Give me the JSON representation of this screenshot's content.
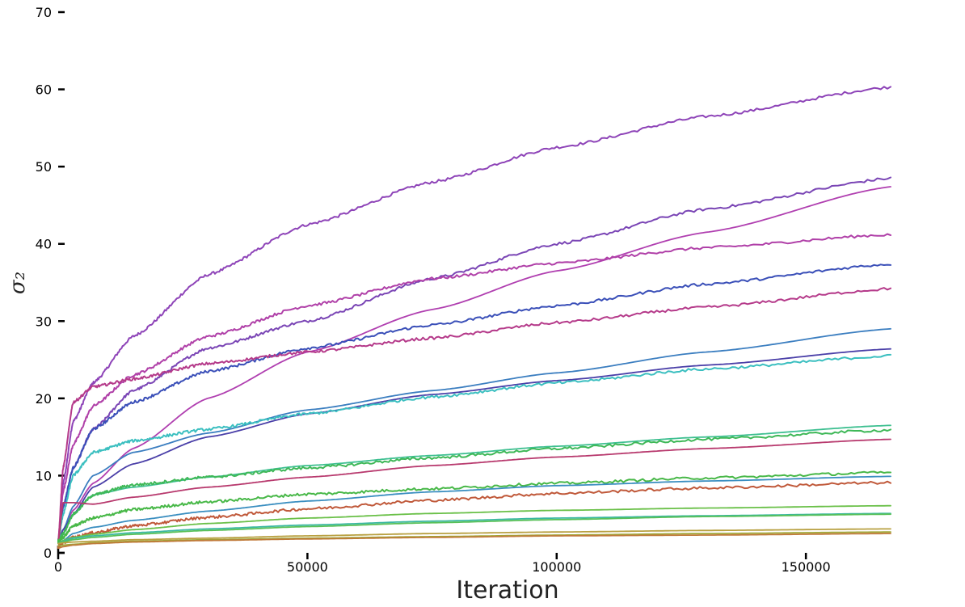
{
  "chart_data": {
    "type": "line",
    "xlabel": "Iteration",
    "ylabel": "σ₂",
    "xlim": [
      0,
      167000
    ],
    "ylim": [
      0,
      70
    ],
    "x_ticks": [
      0,
      50000,
      100000,
      150000
    ],
    "x_tick_labels": [
      "0",
      "50000",
      "100000",
      "150000"
    ],
    "y_ticks": [
      0,
      10,
      20,
      30,
      40,
      50,
      60,
      70
    ],
    "y_tick_labels": [
      "0",
      "10",
      "20",
      "30",
      "40",
      "50",
      "60",
      "70"
    ],
    "grid": false,
    "legend": "none",
    "x": [
      0,
      1000,
      3000,
      7000,
      15000,
      30000,
      50000,
      75000,
      100000,
      130000,
      167000
    ],
    "series": [
      {
        "color": "#8e44b8",
        "noisy": true,
        "values": [
          1.5,
          9,
          17,
          22,
          28,
          36,
          42.5,
          48,
          52.5,
          56.5,
          60.3
        ]
      },
      {
        "color": "#7a45b5",
        "noisy": true,
        "values": [
          1.5,
          6,
          11,
          16,
          21,
          26.5,
          30,
          35.5,
          40,
          44.5,
          48.5
        ]
      },
      {
        "color": "#b03fb0",
        "noisy": false,
        "values": [
          1.2,
          3,
          5.5,
          9,
          13.5,
          20,
          26,
          31.5,
          36.5,
          41.5,
          47.4
        ]
      },
      {
        "color": "#b040a8",
        "noisy": true,
        "values": [
          1.5,
          8,
          14,
          19,
          23,
          28,
          32,
          35.5,
          37.5,
          39.5,
          41.2
        ]
      },
      {
        "color": "#3a4fb8",
        "noisy": true,
        "values": [
          1.5,
          6,
          11,
          16,
          19.5,
          23.5,
          26.5,
          29.5,
          32,
          34.8,
          37.4
        ]
      },
      {
        "color": "#b53a8a",
        "noisy": true,
        "values": [
          1.5,
          11,
          19.5,
          21.5,
          22.5,
          24.5,
          26,
          27.8,
          29.8,
          31.8,
          34.2
        ]
      },
      {
        "color": "#3b7ec0",
        "noisy": false,
        "values": [
          1.5,
          3,
          6,
          10,
          13,
          15.5,
          18.5,
          21,
          23.3,
          26,
          29
        ]
      },
      {
        "color": "#4a3fa8",
        "noisy": false,
        "values": [
          1.5,
          3,
          5,
          8.5,
          11.5,
          15,
          18,
          20.5,
          22.3,
          24.3,
          26.4
        ]
      },
      {
        "color": "#3bbfc0",
        "noisy": true,
        "values": [
          1.5,
          5,
          10,
          13,
          14.5,
          16,
          18,
          20.2,
          22,
          23.8,
          25.5
        ]
      },
      {
        "color": "#3dbf90",
        "noisy": false,
        "values": [
          1.5,
          2.5,
          5,
          7.5,
          8.5,
          9.8,
          11.3,
          12.6,
          13.8,
          15,
          16.5
        ]
      },
      {
        "color": "#3fb858",
        "noisy": true,
        "values": [
          1.5,
          2.5,
          5,
          7.5,
          8.8,
          9.8,
          11,
          12.3,
          13.5,
          14.7,
          15.9
        ]
      },
      {
        "color": "#b83a6e",
        "noisy": false,
        "values": [
          1.5,
          6.5,
          6.5,
          6.3,
          7.2,
          8.5,
          9.8,
          11.3,
          12.4,
          13.5,
          14.7
        ]
      },
      {
        "color": "#48b848",
        "noisy": true,
        "values": [
          1.5,
          2,
          3.5,
          4.5,
          5.6,
          6.6,
          7.6,
          8.3,
          9,
          9.7,
          10.4
        ]
      },
      {
        "color": "#3a8ec0",
        "noisy": false,
        "values": [
          1.2,
          1.6,
          2.5,
          3.3,
          4.2,
          5.4,
          6.7,
          7.9,
          8.7,
          9.3,
          9.9
        ]
      },
      {
        "color": "#c0593a",
        "noisy": true,
        "values": [
          0.8,
          1.3,
          2,
          2.6,
          3.5,
          4.6,
          5.7,
          6.8,
          7.7,
          8.4,
          9.1
        ]
      },
      {
        "color": "#6ac048",
        "noisy": false,
        "values": [
          1.2,
          1.6,
          2,
          2.4,
          3,
          3.8,
          4.5,
          5.1,
          5.5,
          5.8,
          6.1
        ]
      },
      {
        "color": "#3ab8a0",
        "noisy": false,
        "values": [
          1.2,
          1.5,
          1.9,
          2.2,
          2.6,
          3.1,
          3.6,
          4.1,
          4.5,
          4.8,
          5.1
        ]
      },
      {
        "color": "#58c058",
        "noisy": false,
        "values": [
          1.2,
          1.4,
          1.7,
          2,
          2.4,
          2.9,
          3.4,
          3.9,
          4.3,
          4.7,
          5
        ]
      },
      {
        "color": "#b8a040",
        "noisy": false,
        "values": [
          1.2,
          1.3,
          1.4,
          1.5,
          1.7,
          1.9,
          2.2,
          2.5,
          2.7,
          2.9,
          3.1
        ]
      },
      {
        "color": "#a0a838",
        "noisy": false,
        "values": [
          0.9,
          1,
          1.1,
          1.3,
          1.5,
          1.7,
          1.9,
          2.1,
          2.3,
          2.5,
          2.7
        ]
      },
      {
        "color": "#c07a3a",
        "noisy": false,
        "values": [
          0.6,
          0.8,
          1,
          1.2,
          1.4,
          1.6,
          1.8,
          2,
          2.2,
          2.3,
          2.5
        ]
      }
    ]
  }
}
